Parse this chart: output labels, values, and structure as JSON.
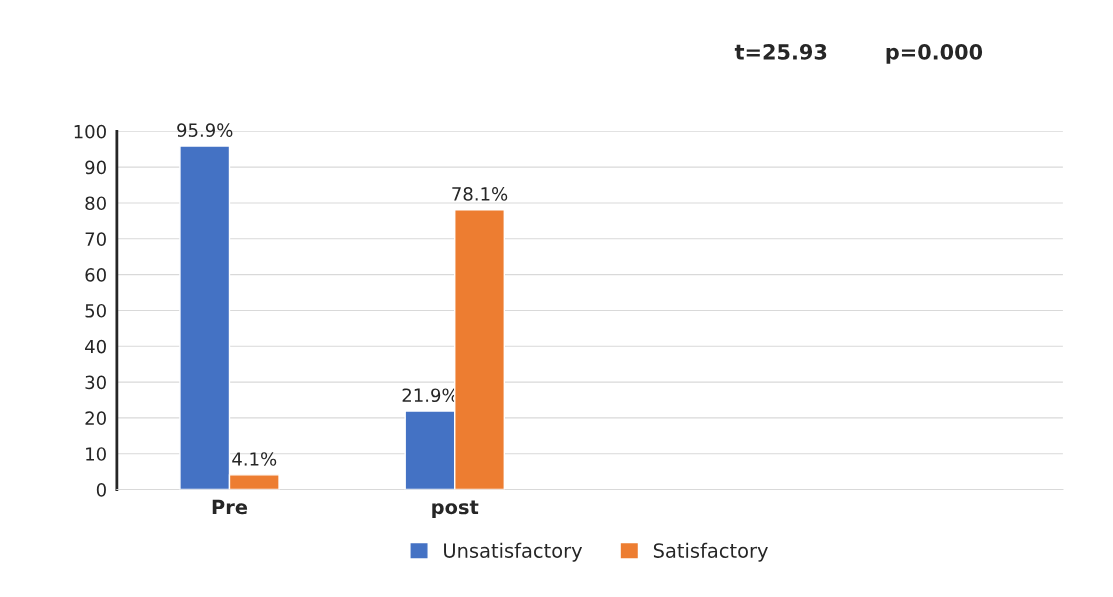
{
  "chart_data": {
    "type": "bar",
    "categories": [
      "Pre",
      "post"
    ],
    "series": [
      {
        "name": "Unsatisfactory",
        "color": "#4472c4",
        "values": [
          95.9,
          21.9
        ],
        "value_labels": [
          "95.9%",
          "21.9%"
        ]
      },
      {
        "name": "Satisfactory",
        "color": "#ed7d31",
        "values": [
          4.1,
          78.1
        ],
        "value_labels": [
          "4.1%",
          "78.1%"
        ]
      }
    ],
    "ylim": [
      0,
      100
    ],
    "yticks": [
      0,
      10,
      20,
      30,
      40,
      50,
      60,
      70,
      80,
      90,
      100
    ],
    "grid": "y",
    "legend": "bottom",
    "annotations": [
      "t=25.93",
      "p=0.000"
    ]
  }
}
